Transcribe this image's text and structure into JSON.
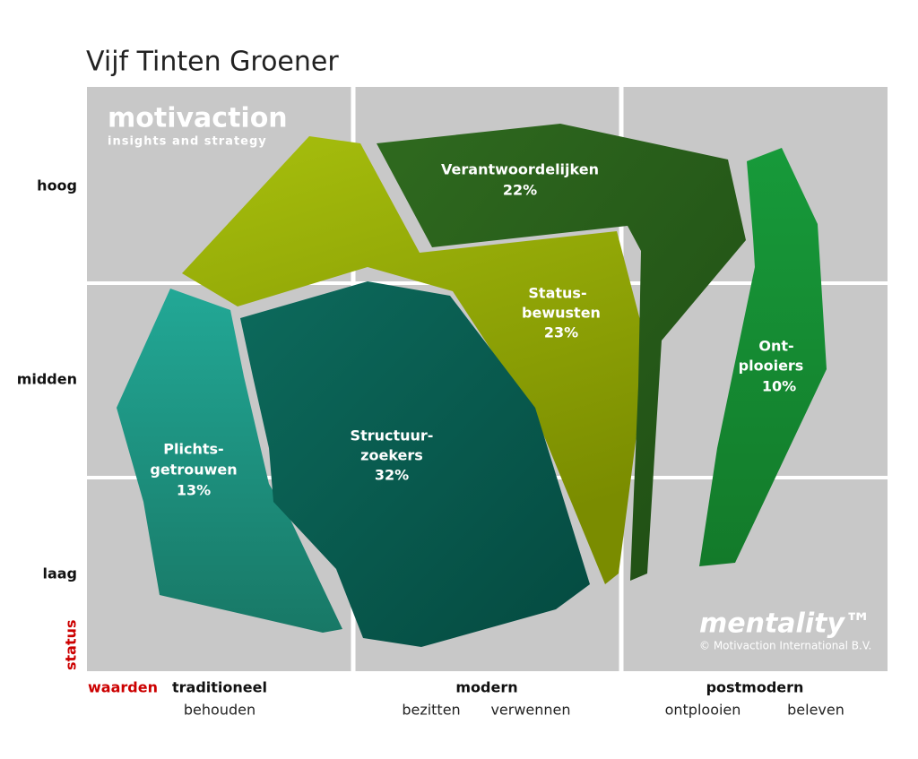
{
  "header": {
    "title": "Vijf Tinten Groener"
  },
  "brand": {
    "name": "motivaction",
    "tagline": "insights and strategy",
    "product": "mentality™",
    "copyright": "© Motivaction International B.V."
  },
  "y_axis": {
    "title": "status",
    "levels": [
      "hoog",
      "midden",
      "laag"
    ]
  },
  "x_axis": {
    "title": "waarden",
    "groups": [
      {
        "label": "traditioneel",
        "sub": [
          "behouden"
        ]
      },
      {
        "label": "modern",
        "sub": [
          "bezitten",
          "verwennen"
        ]
      },
      {
        "label": "postmodern",
        "sub": [
          "ontplooien",
          "beleven"
        ]
      }
    ]
  },
  "segments": [
    {
      "lines": [
        "Verantwoordelijken"
      ],
      "share": "22%"
    },
    {
      "lines": [
        "Status-",
        "bewusten"
      ],
      "share": "23%"
    },
    {
      "lines": [
        "Ont-",
        "plooiers"
      ],
      "share": "10%"
    },
    {
      "lines": [
        "Plichts-",
        "getrouwen"
      ],
      "share": "13%"
    },
    {
      "lines": [
        "Structuur-",
        "zoekers"
      ],
      "share": "32%"
    }
  ]
}
